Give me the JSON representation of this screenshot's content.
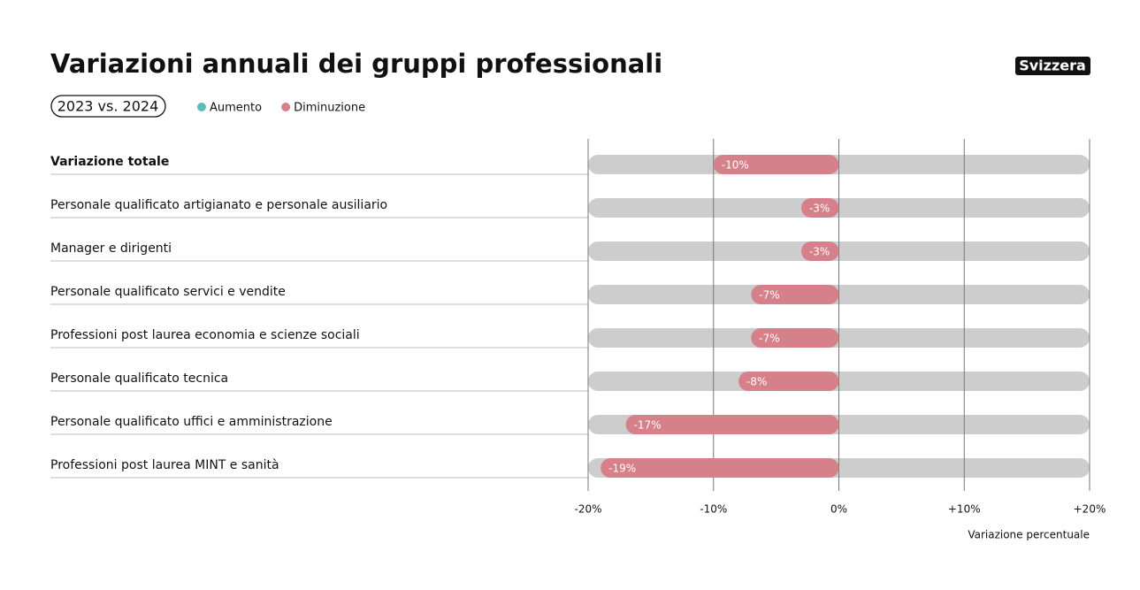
{
  "chart_data": {
    "type": "bar",
    "orientation": "horizontal",
    "title": "Variazioni annuali dei gruppi professionali",
    "subtitle": "2023 vs. 2024",
    "badge": "Svizzera",
    "legend": [
      {
        "label": "Aumento",
        "color": "#5dbcb3"
      },
      {
        "label": "Diminuzione",
        "color": "#d6818a"
      }
    ],
    "categories": [
      "Variazione totale",
      "Personale qualificato artigianato e personale ausiliario",
      "Manager e dirigenti",
      "Personale qualificato servici e vendite",
      "Professioni post laurea economia e scienze sociali",
      "Personale qualificato tecnica",
      "Personale qualificato uffici e amministrazione",
      "Professioni post laurea MINT e sanità"
    ],
    "values": [
      -10,
      -3,
      -3,
      -7,
      -7,
      -8,
      -17,
      -19
    ],
    "value_labels": [
      "-10%",
      "-3%",
      "-3%",
      "-7%",
      "-7%",
      "-8%",
      "-17%",
      "-19%"
    ],
    "xlim": [
      -20,
      20
    ],
    "xticks": [
      {
        "value": -20,
        "label": "-20%"
      },
      {
        "value": -10,
        "label": "-10%"
      },
      {
        "value": 0,
        "label": "0%"
      },
      {
        "value": 10,
        "label": "+10%"
      },
      {
        "value": 20,
        "label": "+20%"
      }
    ],
    "xlabel": "Variazione percentuale",
    "grid": true
  }
}
